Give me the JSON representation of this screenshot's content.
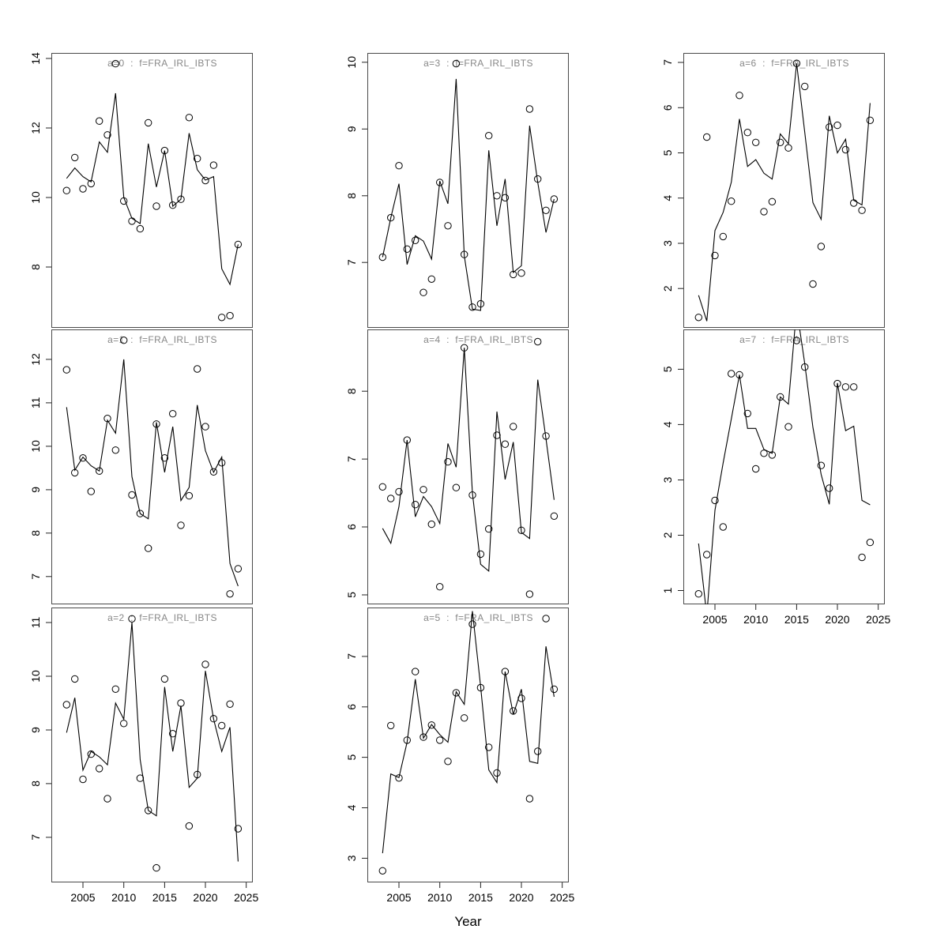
{
  "figure": {
    "xlabel": "Year",
    "background": "#ffffff",
    "grid": false,
    "legend": "none",
    "colors": {
      "line": "#000000",
      "point": "#000000",
      "title": "#878787",
      "box": "#4a4a4a",
      "tick": "#222222",
      "tick_label": "#000000"
    }
  },
  "chart_data": [
    {
      "type": "line",
      "title": "a=0  :  f=FRA_IRL_IBTS",
      "panel": {
        "row": 0,
        "col": 0,
        "x_axis_labels": false
      },
      "x": [
        2003,
        2004,
        2005,
        2006,
        2007,
        2008,
        2009,
        2010,
        2011,
        2012,
        2013,
        2014,
        2015,
        2016,
        2017,
        2018,
        2019,
        2020,
        2021,
        2022,
        2023,
        2024
      ],
      "xlim": [
        2001.13,
        2025.8
      ],
      "ylim": [
        6.25,
        14.16
      ],
      "yticks": [
        8,
        10,
        12,
        14
      ],
      "xticks": [
        2005,
        2010,
        2015,
        2020,
        2025
      ],
      "series": [
        {
          "name": "model-fit-line",
          "style": "line",
          "values": [
            10.55,
            10.85,
            10.6,
            10.45,
            11.6,
            11.3,
            13.0,
            10.0,
            9.4,
            9.25,
            11.55,
            10.3,
            11.35,
            9.75,
            9.95,
            11.85,
            10.8,
            10.5,
            10.6,
            7.95,
            7.5,
            8.65
          ]
        },
        {
          "name": "observed-points",
          "style": "points",
          "values": [
            10.2,
            11.15,
            10.25,
            10.4,
            12.2,
            11.8,
            13.85,
            9.9,
            9.32,
            9.1,
            12.15,
            9.75,
            11.35,
            9.78,
            9.95,
            12.3,
            11.12,
            10.49,
            10.93,
            6.55,
            6.6,
            8.65
          ]
        }
      ]
    },
    {
      "type": "line",
      "title": "a=1  :  f=FRA_IRL_IBTS",
      "panel": {
        "row": 1,
        "col": 0,
        "x_axis_labels": false
      },
      "x": [
        2003,
        2004,
        2005,
        2006,
        2007,
        2008,
        2009,
        2010,
        2011,
        2012,
        2013,
        2014,
        2015,
        2016,
        2017,
        2018,
        2019,
        2020,
        2021,
        2022,
        2023,
        2024
      ],
      "xlim": [
        2001.13,
        2025.8
      ],
      "ylim": [
        6.36,
        12.69
      ],
      "yticks": [
        7,
        8,
        9,
        10,
        11,
        12
      ],
      "xticks": [
        2005,
        2010,
        2015,
        2020,
        2025
      ],
      "series": [
        {
          "name": "model-fit-line",
          "style": "line",
          "values": [
            10.9,
            9.45,
            9.75,
            9.55,
            9.43,
            10.6,
            10.3,
            12.0,
            9.3,
            8.45,
            8.33,
            10.55,
            9.4,
            10.45,
            8.75,
            9.05,
            10.95,
            9.9,
            9.4,
            9.75,
            7.3,
            6.78
          ]
        },
        {
          "name": "observed-points",
          "style": "points",
          "values": [
            11.76,
            9.39,
            9.73,
            8.96,
            9.43,
            10.64,
            9.91,
            12.44,
            8.88,
            8.45,
            7.65,
            10.51,
            9.73,
            10.75,
            8.18,
            8.86,
            11.78,
            10.45,
            9.41,
            9.62,
            6.6,
            7.18
          ]
        }
      ]
    },
    {
      "type": "line",
      "title": "a=2  :  f=FRA_IRL_IBTS",
      "panel": {
        "row": 2,
        "col": 0,
        "x_axis_labels": true
      },
      "x": [
        2003,
        2004,
        2005,
        2006,
        2007,
        2008,
        2009,
        2010,
        2011,
        2012,
        2013,
        2014,
        2015,
        2016,
        2017,
        2018,
        2019,
        2020,
        2021,
        2022,
        2023,
        2024
      ],
      "xlim": [
        2001.13,
        2025.8
      ],
      "ylim": [
        6.16,
        11.28
      ],
      "yticks": [
        7,
        8,
        9,
        10,
        11
      ],
      "xticks": [
        2005,
        2010,
        2015,
        2020,
        2025
      ],
      "series": [
        {
          "name": "model-fit-line",
          "style": "line",
          "values": [
            8.95,
            9.6,
            8.25,
            8.6,
            8.5,
            8.35,
            9.5,
            9.2,
            11.0,
            8.45,
            7.5,
            7.4,
            9.8,
            8.6,
            9.45,
            7.93,
            8.1,
            10.1,
            9.2,
            8.6,
            9.05,
            6.55
          ]
        },
        {
          "name": "observed-points",
          "style": "points",
          "values": [
            9.47,
            9.95,
            8.08,
            8.55,
            8.28,
            7.72,
            9.76,
            9.12,
            11.07,
            8.1,
            7.5,
            6.43,
            9.95,
            8.93,
            9.5,
            7.21,
            8.17,
            10.22,
            9.21,
            9.08,
            9.48,
            7.16
          ]
        }
      ]
    },
    {
      "type": "line",
      "title": "a=3  :  f=FRA_IRL_IBTS",
      "panel": {
        "row": 0,
        "col": 1,
        "x_axis_labels": false
      },
      "x": [
        2003,
        2004,
        2005,
        2006,
        2007,
        2008,
        2009,
        2010,
        2011,
        2012,
        2013,
        2014,
        2015,
        2016,
        2017,
        2018,
        2019,
        2020,
        2021,
        2022,
        2023,
        2024
      ],
      "xlim": [
        2001.13,
        2025.8
      ],
      "ylim": [
        6.02,
        10.14
      ],
      "yticks": [
        7,
        8,
        9,
        10
      ],
      "xticks": [
        2005,
        2010,
        2015,
        2020,
        2025
      ],
      "series": [
        {
          "name": "model-fit-line",
          "style": "line",
          "values": [
            7.08,
            7.67,
            8.18,
            6.97,
            7.4,
            7.32,
            7.05,
            8.22,
            7.88,
            9.75,
            7.1,
            6.3,
            6.28,
            8.68,
            7.55,
            8.25,
            6.85,
            6.95,
            9.05,
            8.2,
            7.45,
            7.95
          ]
        },
        {
          "name": "observed-points",
          "style": "points",
          "values": [
            7.08,
            7.67,
            8.45,
            7.2,
            7.33,
            6.55,
            6.75,
            8.2,
            7.55,
            9.98,
            7.12,
            6.33,
            6.38,
            8.9,
            8.0,
            7.97,
            6.82,
            6.84,
            9.3,
            8.25,
            7.78,
            7.95
          ]
        }
      ]
    },
    {
      "type": "line",
      "title": "a=4  :  f=FRA_IRL_IBTS",
      "panel": {
        "row": 1,
        "col": 1,
        "x_axis_labels": false
      },
      "x": [
        2003,
        2004,
        2005,
        2006,
        2007,
        2008,
        2009,
        2010,
        2011,
        2012,
        2013,
        2014,
        2015,
        2016,
        2017,
        2018,
        2019,
        2020,
        2021,
        2022,
        2023,
        2024
      ],
      "xlim": [
        2001.13,
        2025.8
      ],
      "ylim": [
        4.86,
        8.91
      ],
      "yticks": [
        5,
        6,
        7,
        8
      ],
      "xticks": [
        2005,
        2010,
        2015,
        2020,
        2025
      ],
      "series": [
        {
          "name": "model-fit-line",
          "style": "line",
          "values": [
            5.98,
            5.76,
            6.3,
            7.28,
            6.15,
            6.45,
            6.3,
            6.05,
            7.23,
            6.88,
            8.64,
            6.5,
            5.45,
            5.35,
            7.7,
            6.7,
            7.25,
            5.92,
            5.83,
            8.17,
            7.3,
            6.4
          ]
        },
        {
          "name": "observed-points",
          "style": "points",
          "values": [
            6.59,
            6.42,
            6.52,
            7.28,
            6.33,
            6.55,
            6.04,
            5.12,
            6.96,
            6.58,
            8.64,
            6.47,
            5.6,
            5.97,
            7.35,
            7.22,
            7.48,
            5.95,
            5.01,
            8.73,
            7.34,
            6.16
          ]
        }
      ]
    },
    {
      "type": "line",
      "title": "a=5  :  f=FRA_IRL_IBTS",
      "panel": {
        "row": 2,
        "col": 1,
        "x_axis_labels": true
      },
      "x": [
        2003,
        2004,
        2005,
        2006,
        2007,
        2008,
        2009,
        2010,
        2011,
        2012,
        2013,
        2014,
        2015,
        2016,
        2017,
        2018,
        2019,
        2020,
        2021,
        2022,
        2023,
        2024
      ],
      "xlim": [
        2001.13,
        2025.8
      ],
      "ylim": [
        2.52,
        7.97
      ],
      "yticks": [
        3,
        4,
        5,
        6,
        7
      ],
      "xticks": [
        2005,
        2010,
        2015,
        2020,
        2025
      ],
      "series": [
        {
          "name": "model-fit-line",
          "style": "line",
          "values": [
            3.1,
            4.67,
            4.6,
            5.3,
            6.55,
            5.38,
            5.65,
            5.45,
            5.3,
            6.3,
            6.05,
            7.9,
            6.4,
            4.75,
            4.5,
            6.7,
            5.85,
            6.35,
            4.92,
            4.88,
            7.2,
            6.2
          ]
        },
        {
          "name": "observed-points",
          "style": "points",
          "values": [
            2.75,
            5.63,
            4.59,
            5.34,
            6.7,
            5.4,
            5.64,
            5.34,
            4.92,
            6.28,
            5.78,
            7.64,
            6.38,
            5.2,
            4.69,
            6.7,
            5.92,
            6.17,
            4.18,
            5.12,
            7.75,
            6.35
          ]
        }
      ]
    },
    {
      "type": "line",
      "title": "a=6  :  f=FRA_IRL_IBTS",
      "panel": {
        "row": 0,
        "col": 2,
        "x_axis_labels": false
      },
      "x": [
        2003,
        2004,
        2005,
        2006,
        2007,
        2008,
        2009,
        2010,
        2011,
        2012,
        2013,
        2014,
        2015,
        2016,
        2017,
        2018,
        2019,
        2020,
        2021,
        2022,
        2023,
        2024
      ],
      "xlim": [
        2001.13,
        2025.8
      ],
      "ylim": [
        1.13,
        7.21
      ],
      "yticks": [
        2,
        3,
        4,
        5,
        6,
        7
      ],
      "xticks": [
        2005,
        2010,
        2015,
        2020,
        2025
      ],
      "series": [
        {
          "name": "model-fit-line",
          "style": "line",
          "values": [
            1.85,
            1.28,
            3.28,
            3.68,
            4.35,
            5.75,
            4.7,
            4.85,
            4.55,
            4.42,
            5.42,
            5.2,
            6.98,
            5.45,
            3.9,
            3.53,
            5.82,
            5.0,
            5.3,
            3.95,
            3.85,
            6.1
          ]
        },
        {
          "name": "observed-points",
          "style": "points",
          "values": [
            1.36,
            5.35,
            2.73,
            3.15,
            3.93,
            6.27,
            5.45,
            5.23,
            3.7,
            3.92,
            5.23,
            5.11,
            6.98,
            6.47,
            2.1,
            2.93,
            5.57,
            5.61,
            5.07,
            3.89,
            3.73,
            5.72
          ]
        }
      ]
    },
    {
      "type": "line",
      "title": "a=7  :  f=FRA_IRL_IBTS",
      "panel": {
        "row": 1,
        "col": 2,
        "x_axis_labels": true
      },
      "x": [
        2003,
        2004,
        2005,
        2006,
        2007,
        2008,
        2009,
        2010,
        2011,
        2012,
        2013,
        2014,
        2015,
        2016,
        2017,
        2018,
        2019,
        2020,
        2021,
        2022,
        2023,
        2024
      ],
      "xlim": [
        2001.13,
        2025.8
      ],
      "ylim": [
        0.75,
        5.72
      ],
      "yticks": [
        1,
        2,
        3,
        4,
        5
      ],
      "xticks": [
        2005,
        2010,
        2015,
        2020,
        2025
      ],
      "series": [
        {
          "name": "model-fit-line",
          "style": "line",
          "values": [
            1.85,
            0.55,
            2.45,
            3.3,
            4.1,
            4.9,
            3.93,
            3.93,
            3.55,
            3.48,
            4.5,
            4.37,
            6.1,
            5.1,
            3.95,
            3.1,
            2.56,
            4.75,
            3.89,
            3.97,
            2.63,
            2.55
          ]
        },
        {
          "name": "observed-points",
          "style": "points",
          "values": [
            0.94,
            1.65,
            2.63,
            2.15,
            4.92,
            4.9,
            4.2,
            3.2,
            3.48,
            3.45,
            4.5,
            3.96,
            5.52,
            5.04,
            null,
            3.26,
            2.85,
            4.74,
            4.68,
            4.68,
            1.6,
            1.87
          ]
        }
      ]
    }
  ]
}
